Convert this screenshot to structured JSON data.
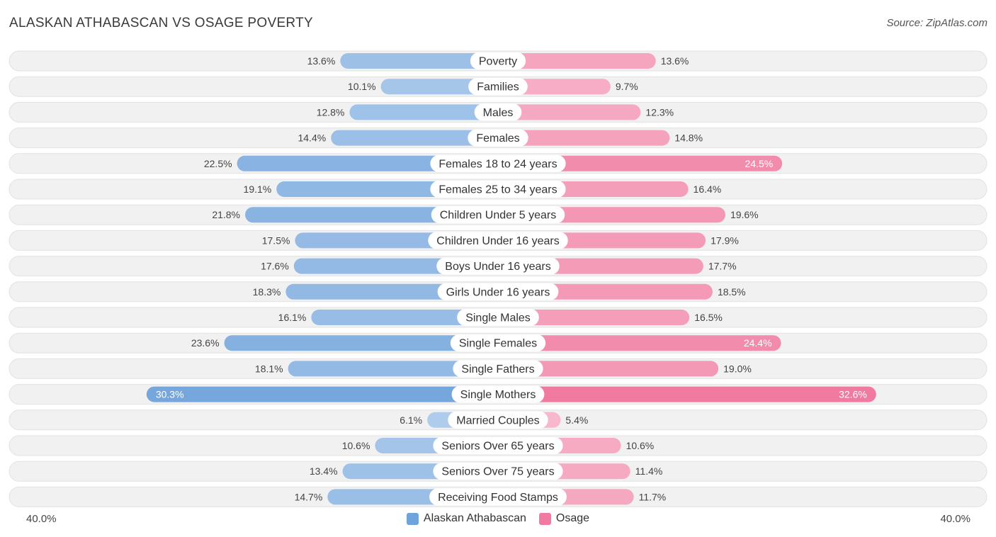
{
  "title": "ALASKAN ATHABASCAN VS OSAGE POVERTY",
  "source": "Source: ZipAtlas.com",
  "colors": {
    "left_series": "#6fa3dc",
    "right_series": "#f07aa0"
  },
  "chart_data": {
    "type": "bar",
    "orientation": "horizontal-diverging",
    "categories": [
      "Poverty",
      "Families",
      "Males",
      "Females",
      "Females 18 to 24 years",
      "Females 25 to 34 years",
      "Children Under 5 years",
      "Children Under 16 years",
      "Boys Under 16 years",
      "Girls Under 16 years",
      "Single Males",
      "Single Females",
      "Single Fathers",
      "Single Mothers",
      "Married Couples",
      "Seniors Over 65 years",
      "Seniors Over 75 years",
      "Receiving Food Stamps"
    ],
    "series": [
      {
        "name": "Alaskan Athabascan",
        "values": [
          13.6,
          10.1,
          12.8,
          14.4,
          22.5,
          19.1,
          21.8,
          17.5,
          17.6,
          18.3,
          16.1,
          23.6,
          18.1,
          30.3,
          6.1,
          10.6,
          13.4,
          14.7
        ],
        "labels": [
          "13.6%",
          "10.1%",
          "12.8%",
          "14.4%",
          "22.5%",
          "19.1%",
          "21.8%",
          "17.5%",
          "17.6%",
          "18.3%",
          "16.1%",
          "23.6%",
          "18.1%",
          "30.3%",
          "6.1%",
          "10.6%",
          "13.4%",
          "14.7%"
        ]
      },
      {
        "name": "Osage",
        "values": [
          13.6,
          9.7,
          12.3,
          14.8,
          24.5,
          16.4,
          19.6,
          17.9,
          17.7,
          18.5,
          16.5,
          24.4,
          19.0,
          32.6,
          5.4,
          10.6,
          11.4,
          11.7
        ],
        "labels": [
          "13.6%",
          "9.7%",
          "12.3%",
          "14.8%",
          "24.5%",
          "16.4%",
          "19.6%",
          "17.9%",
          "17.7%",
          "18.5%",
          "16.5%",
          "24.4%",
          "19.0%",
          "32.6%",
          "5.4%",
          "10.6%",
          "11.4%",
          "11.7%"
        ]
      }
    ],
    "xlim": [
      0,
      40
    ],
    "axis_min_label": "40.0%",
    "axis_max_label": "40.0%",
    "legend_position": "bottom-center"
  }
}
